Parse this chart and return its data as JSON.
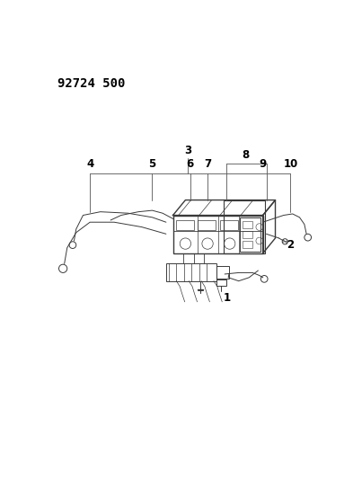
{
  "title": "92724 500",
  "bg_color": "#ffffff",
  "line_color": "#3a3a3a",
  "label_color": "#000000",
  "title_fontsize": 10,
  "label_fontsize": 8.5,
  "fig_width": 3.93,
  "fig_height": 5.33,
  "dpi": 100
}
